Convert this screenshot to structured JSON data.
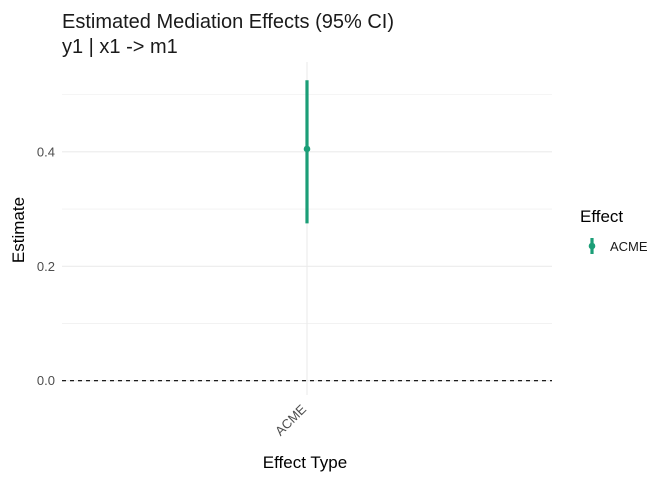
{
  "chart_data": {
    "type": "pointrange",
    "title": "Estimated Mediation Effects (95% CI)",
    "subtitle": "y1 | x1 -> m1",
    "xlabel": "Effect Type",
    "ylabel": "Estimate",
    "categories": [
      "ACME"
    ],
    "series": [
      {
        "name": "ACME",
        "points": [
          {
            "category": "ACME",
            "estimate": 0.405,
            "ci_lower": 0.275,
            "ci_upper": 0.525
          }
        ]
      }
    ],
    "yticks": [
      0.0,
      0.2,
      0.4
    ],
    "ytick_labels": [
      "0.0",
      "0.2",
      "0.4"
    ],
    "ylim": [
      -0.025,
      0.557
    ],
    "reference_line": {
      "y": 0.0,
      "style": "dashed"
    },
    "grid": true,
    "legend": {
      "title": "Effect",
      "placement": "right",
      "entries": [
        "ACME"
      ]
    },
    "colors": {
      "ACME": "#1b9e77",
      "grid": "#ebebeb",
      "reference": "#000000"
    }
  }
}
